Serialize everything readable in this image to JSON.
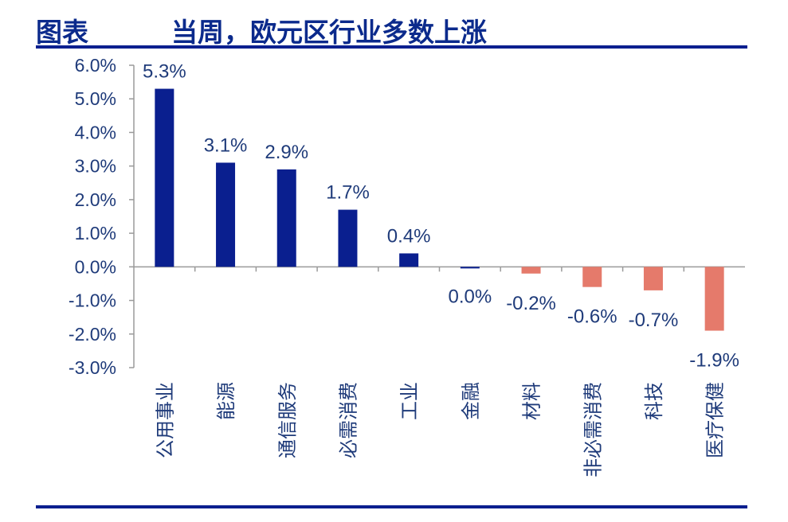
{
  "header": {
    "label": "图表",
    "title": "当周，欧元区行业多数上涨"
  },
  "colors": {
    "positive": "#0a1f8f",
    "negative": "#e57a6b",
    "text": "#1f3b7a",
    "rule": "#0a1f8f"
  },
  "chart_data": {
    "type": "bar",
    "categories": [
      "公用事业",
      "能源",
      "通信服务",
      "必需消费",
      "工业",
      "金融",
      "材料",
      "非必需消费",
      "科技",
      "医疗保健"
    ],
    "values": [
      5.3,
      3.1,
      2.9,
      1.7,
      0.4,
      0.0,
      -0.2,
      -0.6,
      -0.7,
      -1.9
    ],
    "data_labels": [
      "5.3%",
      "3.1%",
      "2.9%",
      "1.7%",
      "0.4%",
      "0.0%",
      "-0.2%",
      "-0.6%",
      "-0.7%",
      "-1.9%"
    ],
    "y_ticks": [
      "6.0%",
      "5.0%",
      "4.0%",
      "3.0%",
      "2.0%",
      "1.0%",
      "0.0%",
      "-1.0%",
      "-2.0%",
      "-3.0%"
    ],
    "ylim": [
      -3,
      6
    ],
    "grid": false,
    "legend": "none",
    "title": "",
    "xlabel": "",
    "ylabel": ""
  }
}
